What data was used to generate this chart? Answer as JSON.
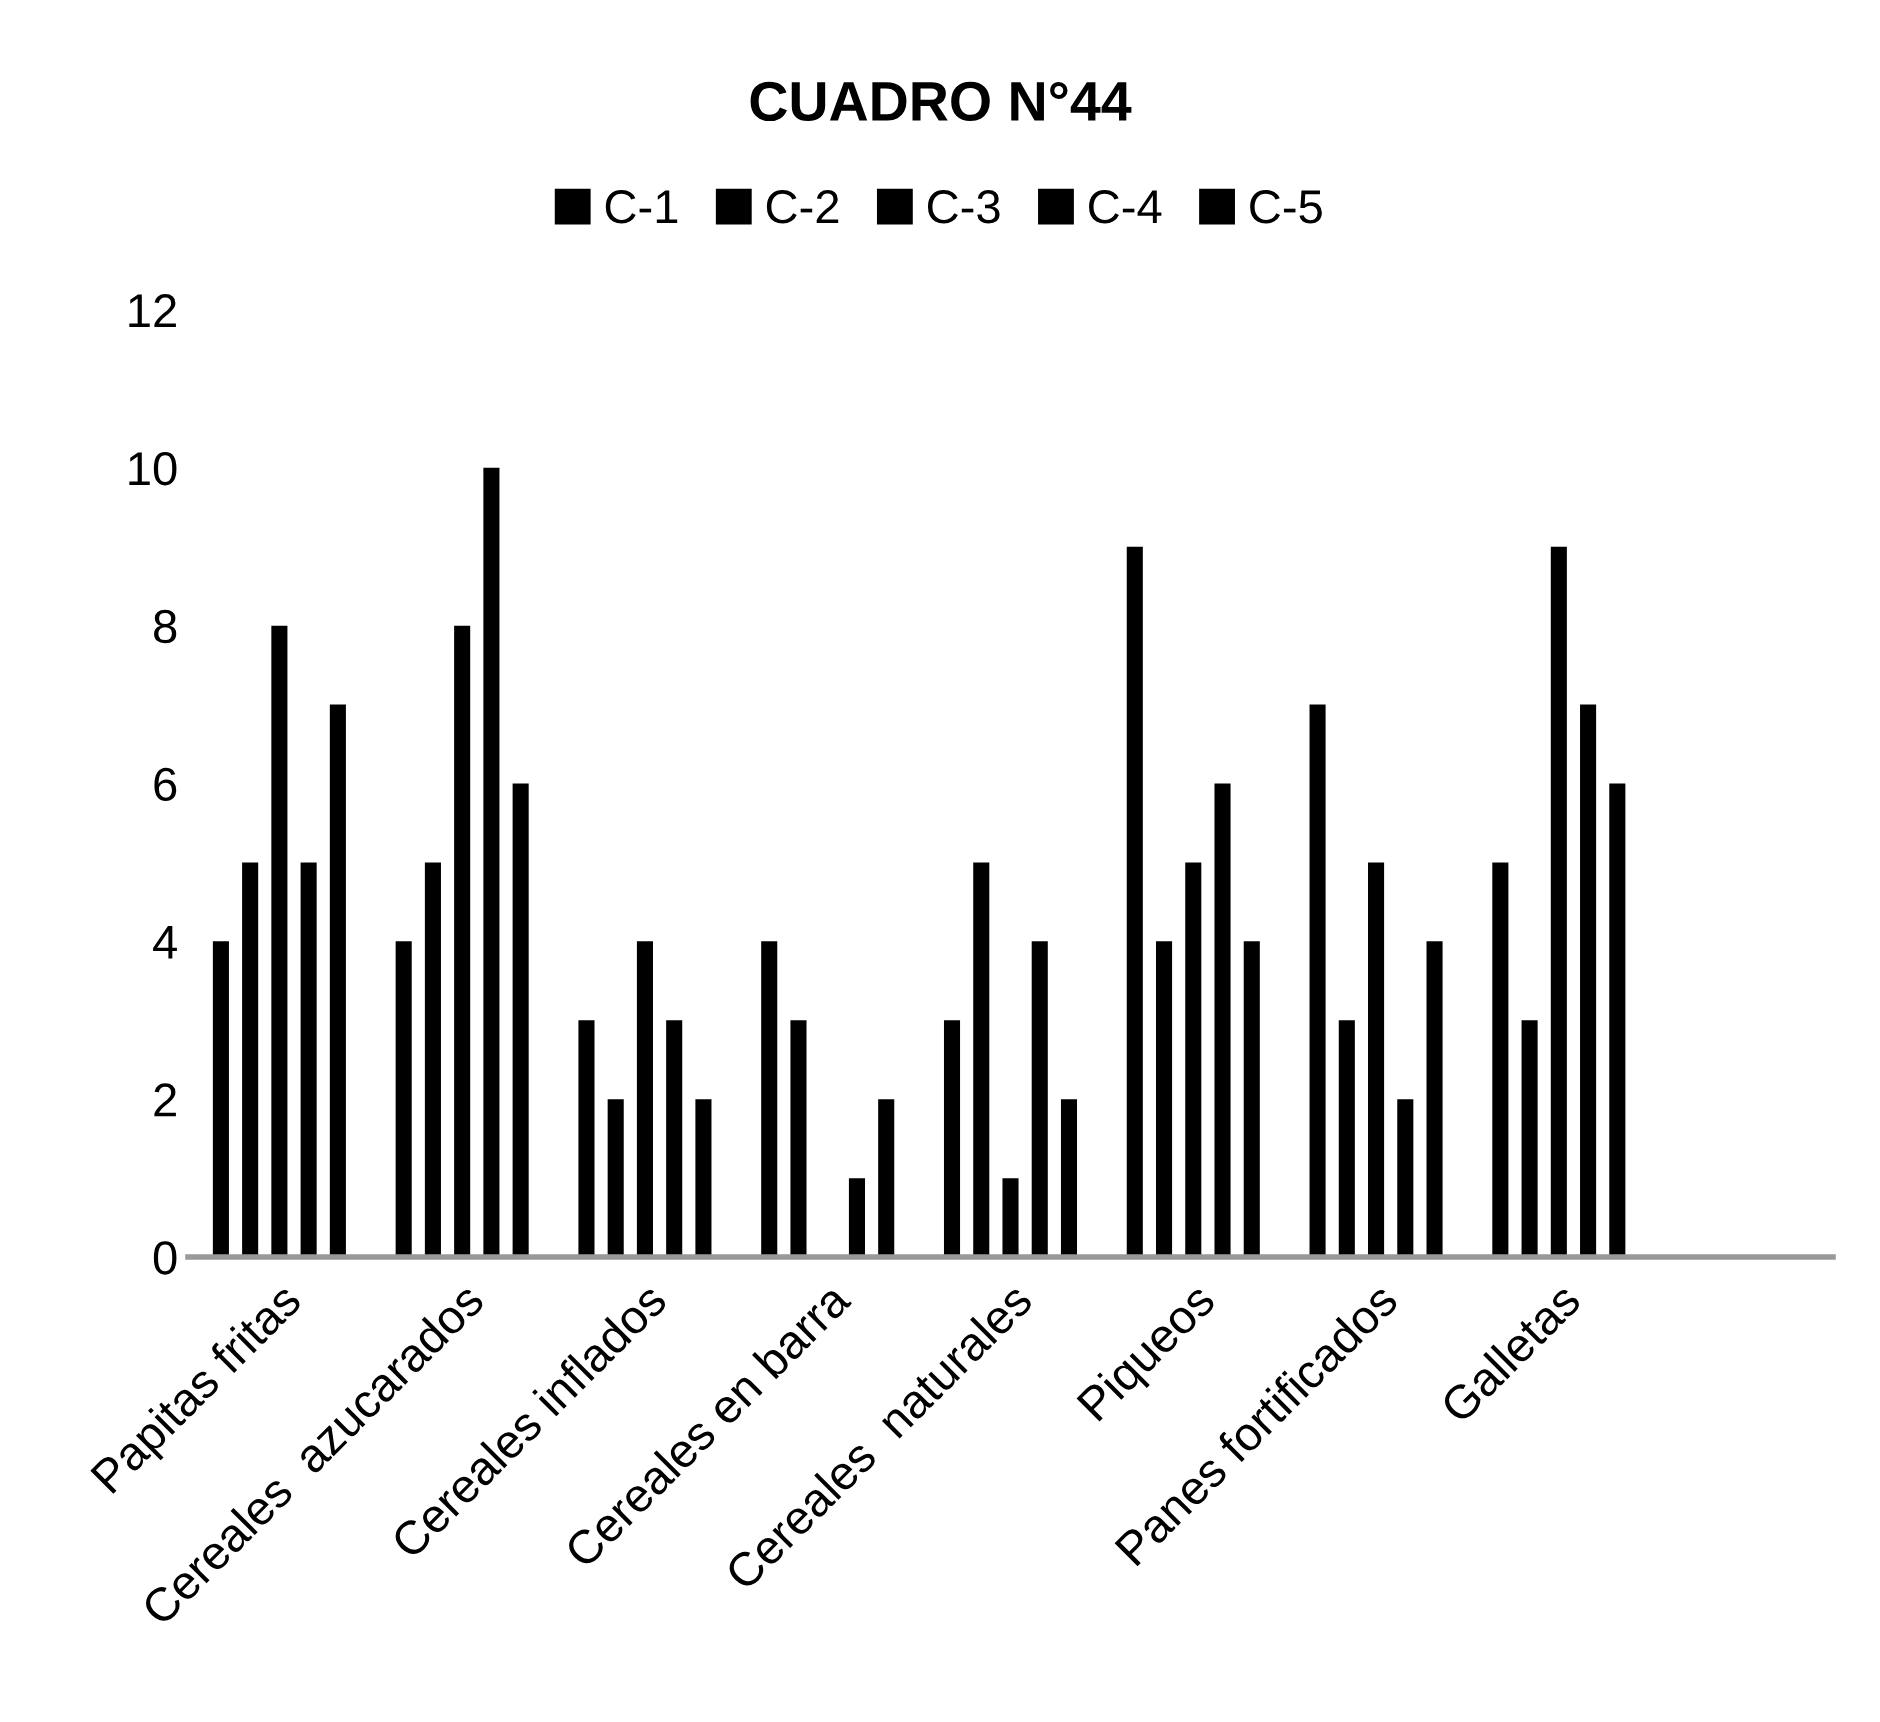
{
  "chart_data": {
    "type": "bar",
    "title": "CUADRO N°44",
    "categories": [
      "Papitas fritas",
      "Cereales  azucarados",
      "Cereales inflados",
      "Cereales en barra",
      "Cereales  naturales",
      "Piqueos",
      "Panes fortificados",
      "Galletas",
      null
    ],
    "series": [
      {
        "name": "C-1",
        "color": "#000000",
        "values": [
          4,
          4,
          3,
          4,
          3,
          9,
          7,
          5,
          null
        ]
      },
      {
        "name": "C-2",
        "color": "#000000",
        "values": [
          5,
          5,
          2,
          3,
          5,
          4,
          3,
          3,
          null
        ]
      },
      {
        "name": "C-3",
        "color": "#000000",
        "values": [
          8,
          8,
          4,
          0,
          1,
          5,
          5,
          9,
          null
        ]
      },
      {
        "name": "C-4",
        "color": "#000000",
        "values": [
          5,
          10,
          3,
          1,
          4,
          6,
          2,
          7,
          null
        ]
      },
      {
        "name": "C-5",
        "color": "#000000",
        "values": [
          7,
          6,
          2,
          2,
          2,
          4,
          4,
          6,
          null
        ]
      }
    ],
    "ylim": [
      0,
      12
    ],
    "yticks": [
      0,
      2,
      4,
      6,
      8,
      10,
      12
    ],
    "grid": false,
    "legend": "top"
  }
}
